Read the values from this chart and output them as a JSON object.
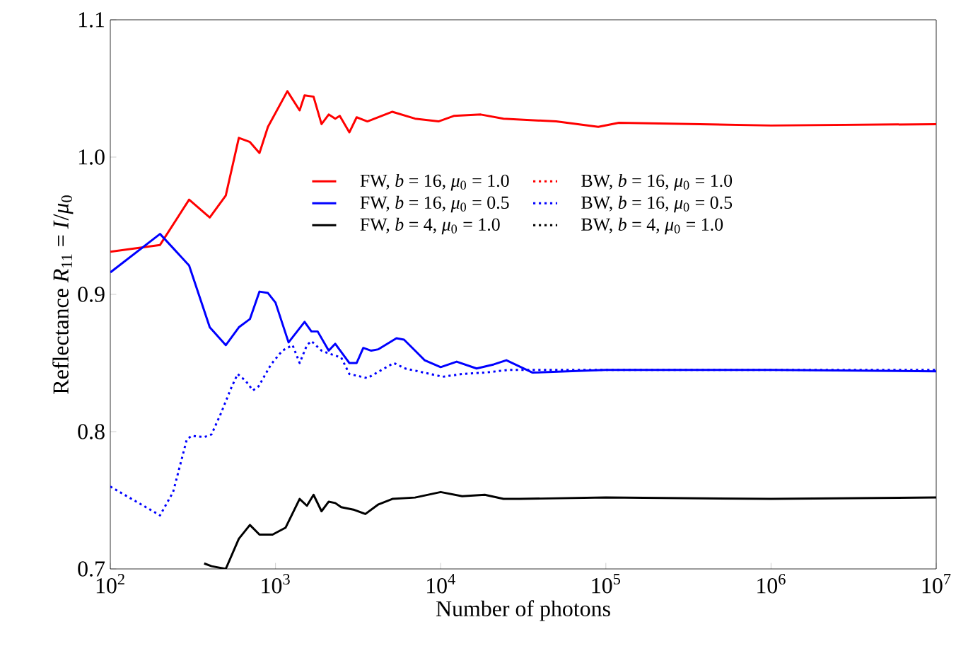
{
  "chart_data": {
    "type": "line",
    "xlabel": "Number of photons",
    "ylabel": "Reflectance *R*$_{11}$ = *I*/*μ*$_{0}$",
    "log": "x",
    "xlim": [
      100,
      10000000
    ],
    "ylim": [
      0.7,
      1.1
    ],
    "xticks": [
      {
        "value": 100,
        "label": "10$^{2}$"
      },
      {
        "value": 1000,
        "label": "10$^{3}$"
      },
      {
        "value": 10000,
        "label": "10$^{4}$"
      },
      {
        "value": 100000,
        "label": "10$^{5}$"
      },
      {
        "value": 1000000,
        "label": "10$^{6}$"
      },
      {
        "value": 10000000,
        "label": "10$^{7}$"
      }
    ],
    "yticks": [
      {
        "value": 0.7,
        "label": "0.7"
      },
      {
        "value": 0.8,
        "label": "0.8"
      },
      {
        "value": 0.9,
        "label": "0.9"
      },
      {
        "value": 1.0,
        "label": "1.0"
      },
      {
        "value": 1.1,
        "label": "1.1"
      }
    ],
    "grid": false,
    "legend": "center",
    "marker": "none",
    "series": [
      {
        "name": "FW, *b* = 16, *μ*$_{0}$ = 1.0",
        "color": "#ff0000",
        "line_style": "solid",
        "x": [
          100,
          200,
          300,
          400,
          500,
          600,
          700,
          800,
          900,
          1180,
          1400,
          1500,
          1700,
          1900,
          2100,
          2300,
          2450,
          2800,
          3100,
          3600,
          5100,
          7000,
          9700,
          12000,
          17500,
          24000,
          50000,
          90000,
          120000,
          1000000,
          10000000
        ],
        "values": [
          0.931,
          0.936,
          0.969,
          0.956,
          0.972,
          1.014,
          1.011,
          1.003,
          1.022,
          1.048,
          1.034,
          1.045,
          1.044,
          1.024,
          1.031,
          1.028,
          1.03,
          1.018,
          1.029,
          1.026,
          1.033,
          1.028,
          1.026,
          1.03,
          1.031,
          1.028,
          1.026,
          1.022,
          1.025,
          1.023,
          1.024
        ]
      },
      {
        "name": "FW, *b* = 16, *μ*$_{0}$ = 0.5",
        "color": "#0000ff",
        "line_style": "solid",
        "x": [
          100,
          200,
          300,
          400,
          500,
          600,
          700,
          800,
          900,
          1000,
          1200,
          1500,
          1650,
          1800,
          2100,
          2300,
          2800,
          3100,
          3400,
          3800,
          4200,
          5400,
          6000,
          7000,
          8000,
          10000,
          12500,
          16500,
          21000,
          25000,
          36000,
          100000,
          1000000,
          10000000
        ],
        "values": [
          0.916,
          0.944,
          0.921,
          0.876,
          0.863,
          0.876,
          0.882,
          0.902,
          0.901,
          0.894,
          0.865,
          0.88,
          0.873,
          0.873,
          0.859,
          0.864,
          0.85,
          0.85,
          0.861,
          0.859,
          0.86,
          0.868,
          0.867,
          0.859,
          0.852,
          0.847,
          0.851,
          0.846,
          0.849,
          0.852,
          0.843,
          0.845,
          0.845,
          0.844
        ]
      },
      {
        "name": "FW, *b* = 4, *μ*$_{0}$ = 1.0",
        "color": "#000000",
        "line_style": "solid",
        "x": [
          370,
          410,
          500,
          600,
          700,
          800,
          960,
          1150,
          1400,
          1550,
          1700,
          1900,
          2100,
          2300,
          2500,
          3000,
          3500,
          4200,
          5100,
          7000,
          10000,
          13500,
          18500,
          24000,
          30000,
          100000,
          1000000,
          10000000
        ],
        "values": [
          0.704,
          0.702,
          0.7,
          0.722,
          0.732,
          0.725,
          0.725,
          0.73,
          0.751,
          0.746,
          0.754,
          0.742,
          0.749,
          0.748,
          0.745,
          0.743,
          0.74,
          0.747,
          0.751,
          0.752,
          0.756,
          0.753,
          0.754,
          0.751,
          0.751,
          0.752,
          0.751,
          0.752
        ]
      },
      {
        "name": "BW, *b* = 16, *μ*$_{0}$ = 1.0",
        "color": "#ff0000",
        "line_style": "dotted"
      },
      {
        "name": "BW, *b* = 16, *μ*$_{0}$ = 0.5",
        "color": "#0000ff",
        "line_style": "dotted",
        "x": [
          100,
          200,
          240,
          290,
          310,
          370,
          410,
          470,
          540,
          590,
          660,
          730,
          790,
          940,
          1100,
          1270,
          1400,
          1550,
          1650,
          1900,
          2100,
          2500,
          2800,
          3600,
          5200,
          6100,
          10300,
          13500,
          18500,
          26000,
          100000,
          1000000,
          10000000
        ],
        "values": [
          0.76,
          0.739,
          0.756,
          0.794,
          0.797,
          0.796,
          0.798,
          0.814,
          0.832,
          0.842,
          0.837,
          0.83,
          0.833,
          0.849,
          0.859,
          0.863,
          0.85,
          0.863,
          0.866,
          0.859,
          0.857,
          0.854,
          0.842,
          0.839,
          0.85,
          0.846,
          0.84,
          0.842,
          0.843,
          0.845,
          0.845,
          0.845,
          0.845
        ]
      },
      {
        "name": "BW, *b* = 4, *μ*$_{0}$ = 1.0",
        "color": "#000000",
        "line_style": "dotted"
      }
    ]
  }
}
